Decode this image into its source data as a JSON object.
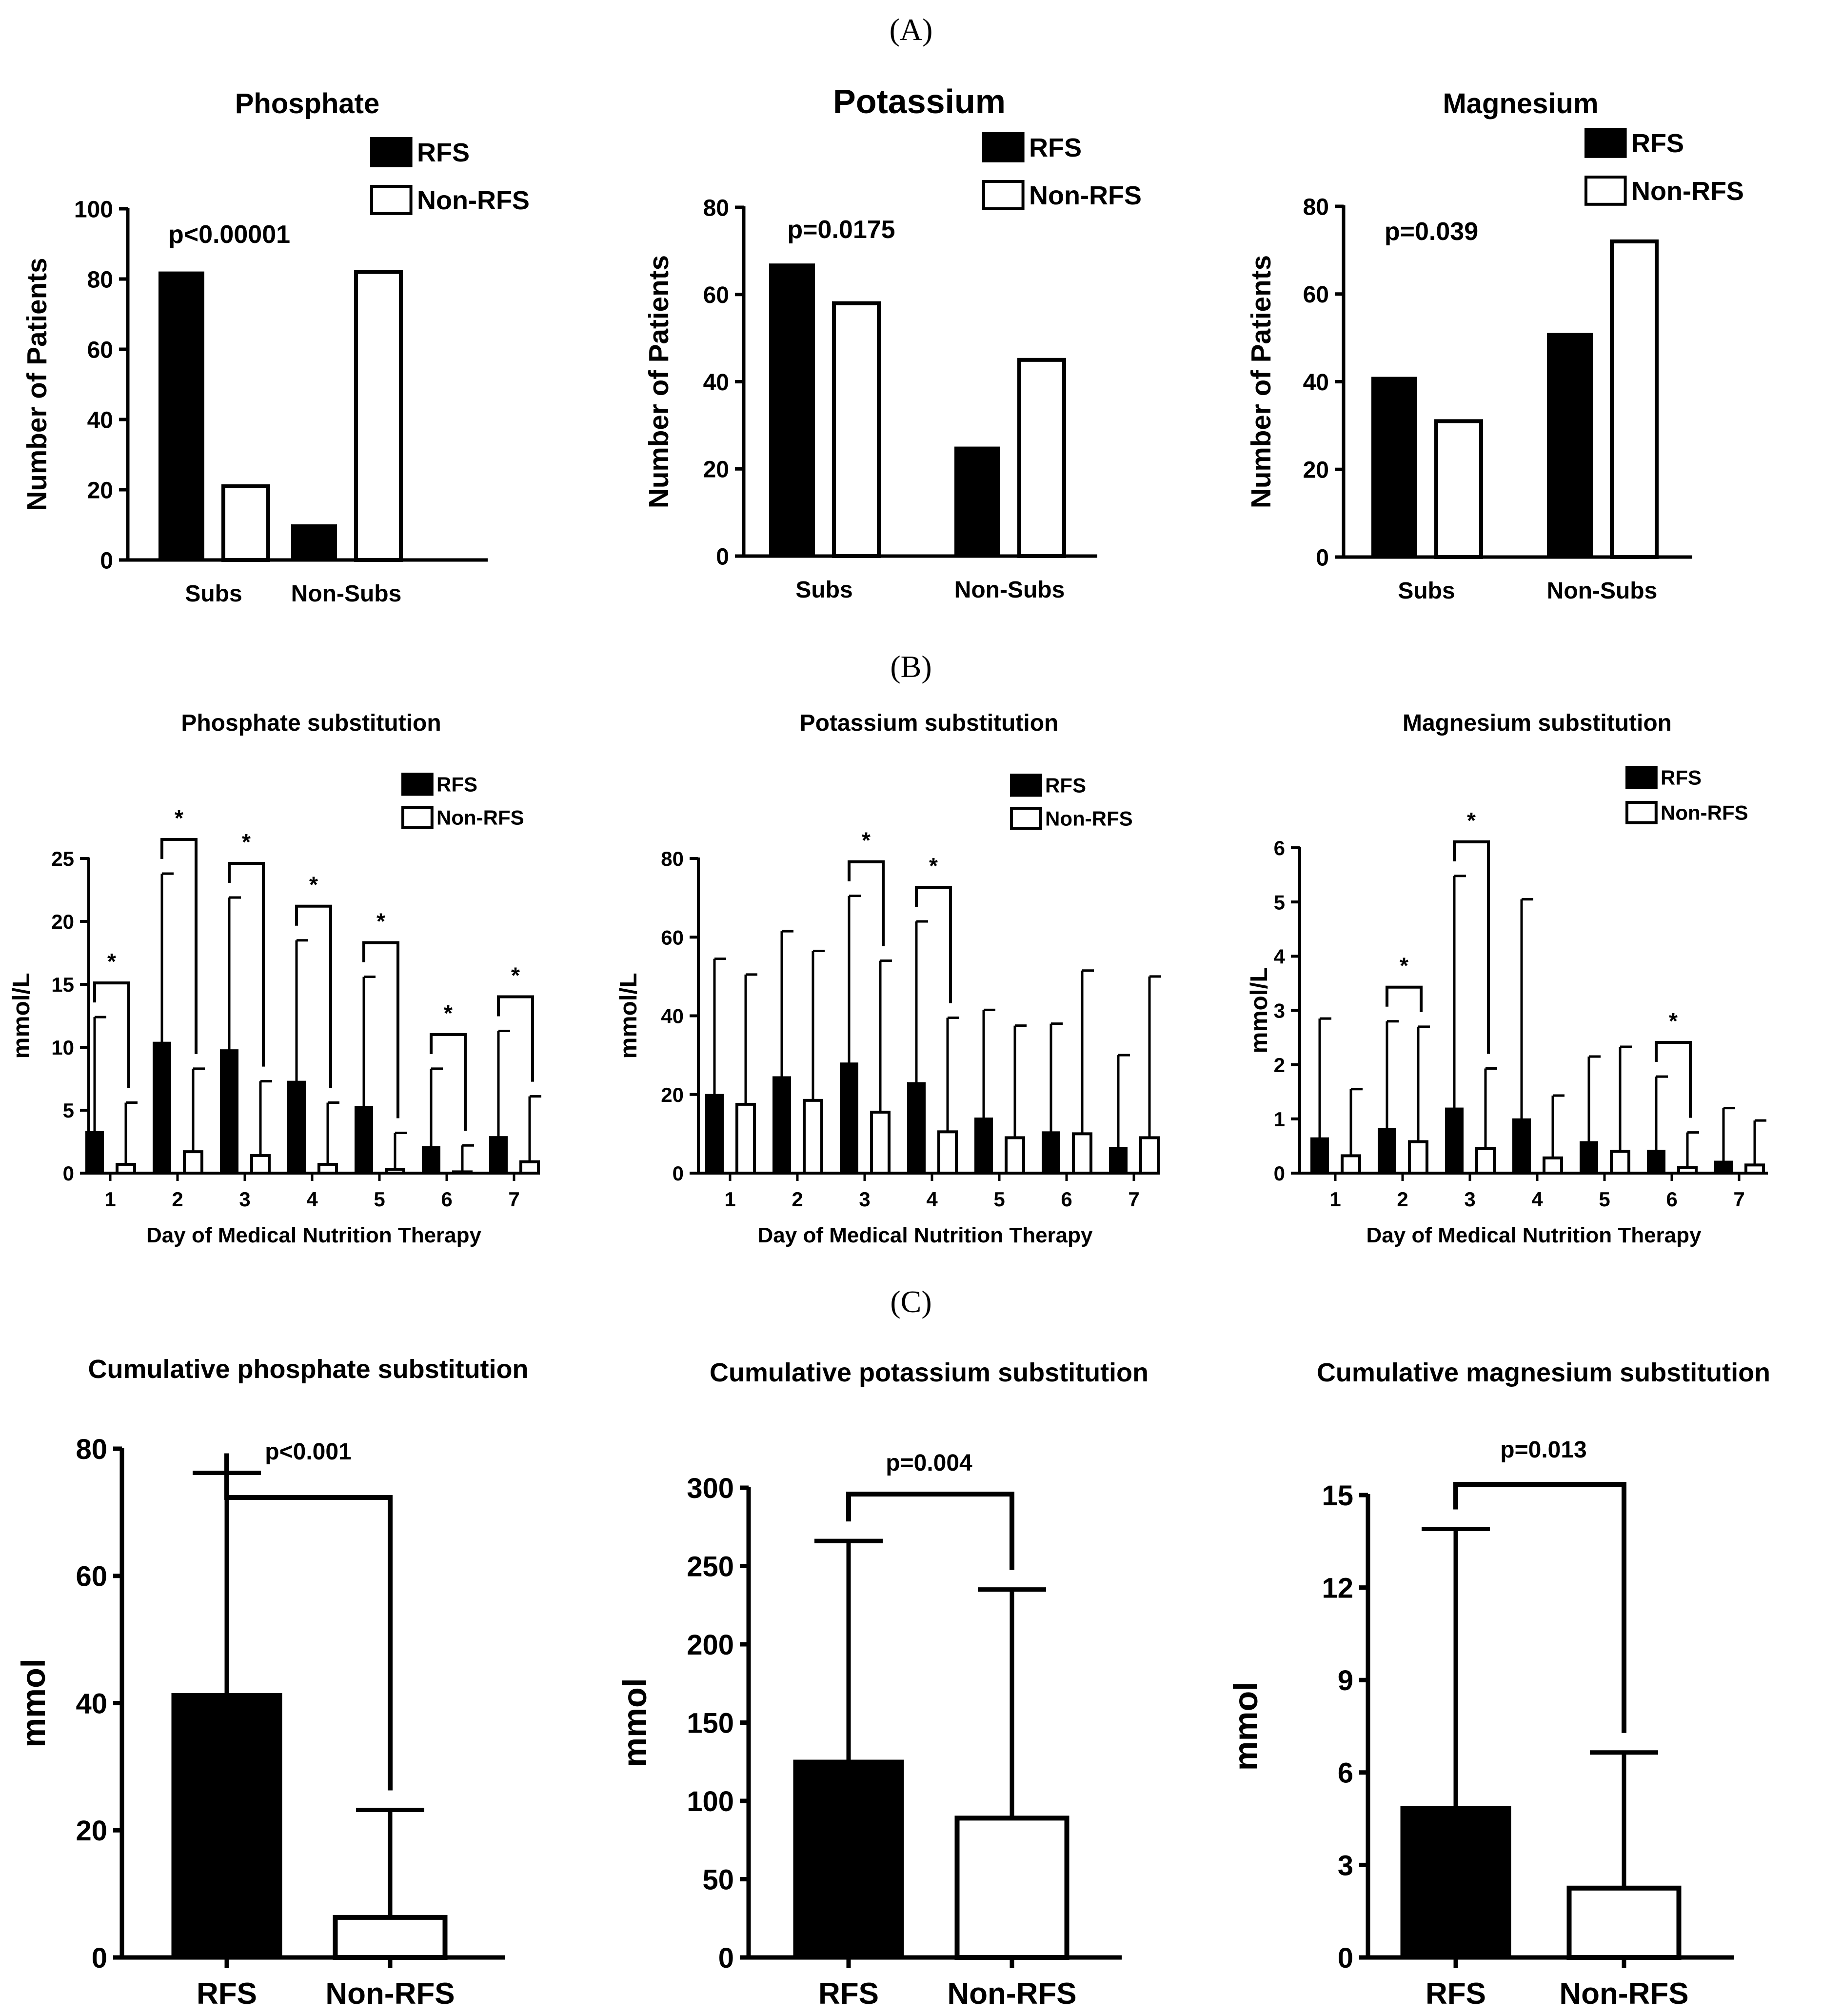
{
  "panel_labels": [
    "(A)",
    "(B)",
    "(C)"
  ],
  "colors": {
    "rfs": "#000000",
    "non_rfs": "#ffffff",
    "stroke": "#000000"
  },
  "legend": {
    "rfs": "RFS",
    "non_rfs": "Non-RFS"
  },
  "chart_data": [
    {
      "id": "A1",
      "type": "bar",
      "title": "Phosphate",
      "ylabel": "Number of Patients",
      "categories": [
        "Subs",
        "Non-Subs"
      ],
      "ylim": [
        0,
        100
      ],
      "yticks": [
        0,
        20,
        40,
        60,
        80,
        100
      ],
      "series": [
        {
          "name": "RFS",
          "values": [
            82,
            10
          ]
        },
        {
          "name": "Non-RFS",
          "values": [
            21,
            82
          ]
        }
      ],
      "annotation": "p<0.00001",
      "legend_position": "top-right"
    },
    {
      "id": "A2",
      "type": "bar",
      "title": "Potassium",
      "ylabel": "Number of Patients",
      "categories": [
        "Subs",
        "Non-Subs"
      ],
      "ylim": [
        0,
        80
      ],
      "yticks": [
        0,
        20,
        40,
        60,
        80
      ],
      "series": [
        {
          "name": "RFS",
          "values": [
            67,
            25
          ]
        },
        {
          "name": "Non-RFS",
          "values": [
            58,
            45
          ]
        }
      ],
      "annotation": "p=0.0175",
      "legend_position": "top-right"
    },
    {
      "id": "A3",
      "type": "bar",
      "title": "Magnesium",
      "ylabel": "Number of Patients",
      "categories": [
        "Subs",
        "Non-Subs"
      ],
      "ylim": [
        0,
        80
      ],
      "yticks": [
        0,
        20,
        40,
        60,
        80
      ],
      "series": [
        {
          "name": "RFS",
          "values": [
            41,
            51
          ]
        },
        {
          "name": "Non-RFS",
          "values": [
            31,
            72
          ]
        }
      ],
      "annotation": "p=0.039",
      "legend_position": "top-right"
    },
    {
      "id": "B1",
      "type": "bar",
      "title": "Phosphate substitution",
      "ylabel": "mmol/L",
      "xlabel": "Day of Medical Nutrition Therapy",
      "categories": [
        "1",
        "2",
        "3",
        "4",
        "5",
        "6",
        "7"
      ],
      "ylim": [
        0,
        25
      ],
      "yticks": [
        0,
        5,
        10,
        15,
        20,
        25
      ],
      "series": [
        {
          "name": "RFS",
          "values": [
            3.3,
            10.4,
            9.8,
            7.3,
            5.3,
            2.1,
            2.9
          ],
          "errors": [
            12.4,
            23.8,
            21.9,
            18.5,
            15.6,
            8.3,
            11.3
          ]
        },
        {
          "name": "Non-RFS",
          "values": [
            0.7,
            1.7,
            1.4,
            0.7,
            0.3,
            0.1,
            0.9
          ],
          "errors": [
            5.6,
            8.3,
            7.3,
            5.6,
            3.2,
            2.2,
            6.1
          ]
        }
      ],
      "significant_days": [
        "1",
        "2",
        "3",
        "4",
        "5",
        "6",
        "7"
      ],
      "sig_marker": "*",
      "legend_position": "top-right"
    },
    {
      "id": "B2",
      "type": "bar",
      "title": "Potassium substitution",
      "ylabel": "mmol/L",
      "xlabel": "Day of Medical Nutrition Therapy",
      "categories": [
        "1",
        "2",
        "3",
        "4",
        "5",
        "6",
        "7"
      ],
      "ylim": [
        0,
        80
      ],
      "yticks": [
        0,
        20,
        40,
        60,
        80
      ],
      "series": [
        {
          "name": "RFS",
          "values": [
            20,
            24.5,
            28,
            23,
            14,
            10.5,
            6.5
          ],
          "errors": [
            54.5,
            61.5,
            70.5,
            64,
            41.5,
            38,
            30
          ]
        },
        {
          "name": "Non-RFS",
          "values": [
            17.5,
            18.5,
            15.5,
            10.5,
            9,
            10,
            9
          ],
          "errors": [
            50.5,
            56.5,
            54,
            39.5,
            37.5,
            51.5,
            50
          ]
        }
      ],
      "significant_days": [
        "3",
        "4"
      ],
      "sig_marker": "*",
      "legend_position": "top-right"
    },
    {
      "id": "B3",
      "type": "bar",
      "title": "Magnesium substitution",
      "ylabel": "mmol/L",
      "xlabel": "Day of Medical Nutrition Therapy",
      "categories": [
        "1",
        "2",
        "3",
        "4",
        "5",
        "6",
        "7"
      ],
      "ylim": [
        0,
        6
      ],
      "yticks": [
        0,
        1,
        2,
        3,
        4,
        5,
        6
      ],
      "series": [
        {
          "name": "RFS",
          "values": [
            0.65,
            0.82,
            1.2,
            1.0,
            0.58,
            0.42,
            0.22
          ],
          "errors": [
            2.85,
            2.8,
            5.48,
            5.05,
            2.15,
            1.78,
            1.2
          ]
        },
        {
          "name": "Non-RFS",
          "values": [
            0.32,
            0.58,
            0.45,
            0.28,
            0.4,
            0.1,
            0.15
          ],
          "errors": [
            1.55,
            2.7,
            1.93,
            1.43,
            2.33,
            0.75,
            0.97
          ]
        }
      ],
      "significant_days": [
        "2",
        "3",
        "6"
      ],
      "sig_marker": "*",
      "legend_position": "top-right"
    },
    {
      "id": "C1",
      "type": "bar",
      "title": "Cumulative phosphate substitution",
      "ylabel": "mmol",
      "categories": [
        "RFS",
        "Non-RFS"
      ],
      "ylim": [
        0,
        80
      ],
      "yticks": [
        0,
        20,
        40,
        60,
        80
      ],
      "values": [
        41.5,
        6.3
      ],
      "errors": [
        76.2,
        23.2
      ],
      "annotation": "p<0.001"
    },
    {
      "id": "C2",
      "type": "bar",
      "title": "Cumulative potassium substitution",
      "ylabel": "mmol",
      "categories": [
        "RFS",
        "Non-RFS"
      ],
      "ylim": [
        0,
        300
      ],
      "yticks": [
        0,
        50,
        100,
        150,
        200,
        250,
        300
      ],
      "values": [
        126,
        89
      ],
      "errors": [
        266,
        235
      ],
      "annotation": "p=0.004"
    },
    {
      "id": "C3",
      "type": "bar",
      "title": "Cumulative magnesium substitution",
      "ylabel": "mmol",
      "categories": [
        "RFS",
        "Non-RFS"
      ],
      "ylim": [
        0,
        15
      ],
      "yticks": [
        0,
        3,
        6,
        9,
        12,
        15
      ],
      "values": [
        4.9,
        2.25
      ],
      "errors": [
        13.9,
        6.65
      ],
      "annotation": "p=0.013"
    }
  ]
}
